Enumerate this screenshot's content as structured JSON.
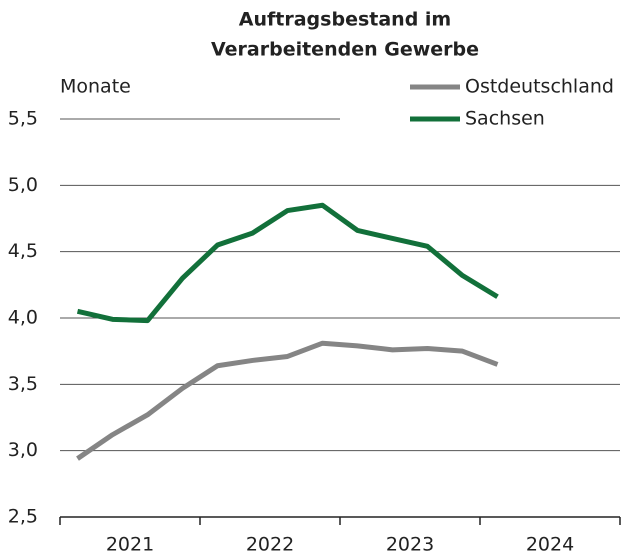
{
  "chart_data": {
    "type": "line",
    "title": [
      "Auftragsbestand im",
      "Verarbeitenden Gewerbe"
    ],
    "y_label": "Monate",
    "x": [
      2021.125,
      2021.375,
      2021.625,
      2021.875,
      2022.125,
      2022.375,
      2022.625,
      2022.875,
      2023.125,
      2023.375,
      2023.625,
      2023.875,
      2024.125
    ],
    "xlim": [
      2021,
      2025
    ],
    "xticks": [
      2021,
      2022,
      2023,
      2024,
      2025
    ],
    "x_labels": [
      "2021",
      "2022",
      "2023",
      "2024"
    ],
    "ylim": [
      2.5,
      5.5
    ],
    "yticks": [
      {
        "value": 2.5,
        "label": "2,5"
      },
      {
        "value": 3.0,
        "label": "3,0"
      },
      {
        "value": 3.5,
        "label": "3,5"
      },
      {
        "value": 4.0,
        "label": "4,0"
      },
      {
        "value": 4.5,
        "label": "4,5"
      },
      {
        "value": 5.0,
        "label": "5,0"
      },
      {
        "value": 5.5,
        "label": "5,5"
      }
    ],
    "grid": true,
    "legend": "top-right",
    "series": [
      {
        "name": "Ostdeutschland",
        "color": "#858585",
        "values": [
          2.94,
          3.12,
          3.27,
          3.47,
          3.64,
          3.68,
          3.71,
          3.81,
          3.79,
          3.76,
          3.77,
          3.75,
          3.65
        ]
      },
      {
        "name": "Sachsen",
        "color": "#12703a",
        "values": [
          4.05,
          3.99,
          3.98,
          4.3,
          4.55,
          4.64,
          4.81,
          4.85,
          4.66,
          4.6,
          4.54,
          4.32,
          4.16
        ]
      }
    ]
  }
}
